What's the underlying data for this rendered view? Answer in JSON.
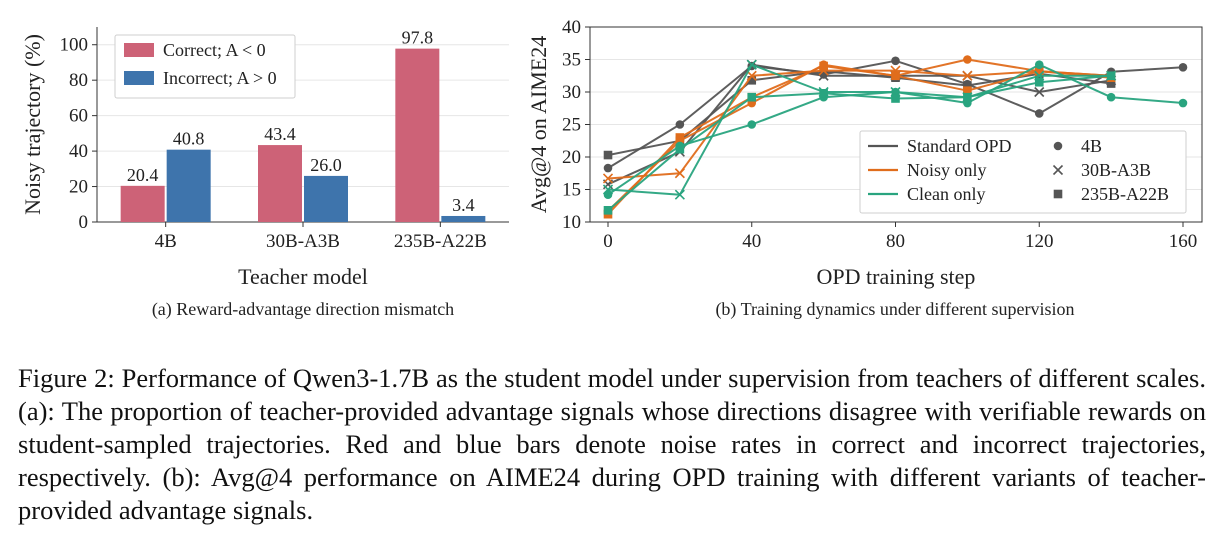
{
  "figure": {
    "caption_label": "Figure 2:",
    "caption_text": "Performance of Qwen3-1.7B as the student model under supervision from teachers of different scales. (a): The proportion of teacher-provided advantage signals whose directions disagree with verifiable rewards on student-sampled trajectories. Red and blue bars denote noise rates in correct and incorrect trajectories, respectively. (b): Avg@4 performance on AIME24 during OPD training with different variants of teacher-provided advantage signals."
  },
  "colors": {
    "correct": "#cd6277",
    "incorrect": "#3e74ac",
    "standard": "#555555",
    "noisy": "#e06d1c",
    "clean": "#29a47f"
  },
  "chart_data": [
    {
      "type": "bar",
      "panel_caption": "(a) Reward-advantage direction mismatch",
      "xlabel": "Teacher model",
      "ylabel": "Noisy trajectory (%)",
      "ylim": [
        0,
        110
      ],
      "yticks": [
        "0",
        "20",
        "40",
        "60",
        "80",
        "100"
      ],
      "categories": [
        "4B",
        "30B-A3B",
        "235B-A22B"
      ],
      "series": [
        {
          "name": "Correct; A < 0",
          "values": [
            20.4,
            43.4,
            97.8
          ],
          "labels": [
            "20.4",
            "43.4",
            "97.8"
          ]
        },
        {
          "name": "Incorrect; A > 0",
          "values": [
            40.8,
            26.0,
            3.4
          ],
          "labels": [
            "40.8",
            "26.0",
            "3.4"
          ]
        }
      ],
      "legend_position": "top-left",
      "grid": "horizontal"
    },
    {
      "type": "line",
      "panel_caption": "(b) Training dynamics under different supervision",
      "xlabel": "OPD training step",
      "ylabel": "Avg@4 on AIME24",
      "xlim": [
        0,
        160
      ],
      "ylim": [
        10,
        40
      ],
      "xticks": [
        "0",
        "40",
        "80",
        "120",
        "160"
      ],
      "yticks": [
        "10",
        "15",
        "20",
        "25",
        "30",
        "35",
        "40"
      ],
      "legend_position": "lower-right",
      "grid": "horizontal",
      "legend": {
        "lines": [
          "Standard OPD",
          "Noisy only",
          "Clean only"
        ],
        "markers": [
          "4B",
          "30B-A3B",
          "235B-A22B"
        ]
      },
      "series": [
        {
          "variant": "Standard OPD",
          "teacher": "4B",
          "marker": "circle",
          "x": [
            0,
            20,
            40,
            60,
            80,
            100,
            120,
            140,
            160
          ],
          "y": [
            18.3,
            25.0,
            34.0,
            32.7,
            34.8,
            31.2,
            26.7,
            33.1,
            33.8
          ]
        },
        {
          "variant": "Standard OPD",
          "teacher": "30B-A3B",
          "marker": "x",
          "x": [
            0,
            20,
            40,
            60,
            80,
            100,
            120,
            140
          ],
          "y": [
            15.8,
            20.8,
            34.2,
            32.5,
            32.5,
            32.5,
            30.0,
            31.8
          ]
        },
        {
          "variant": "Standard OPD",
          "teacher": "235B-A22B",
          "marker": "square",
          "x": [
            0,
            20,
            40,
            60,
            80,
            100,
            120,
            140
          ],
          "y": [
            20.3,
            22.5,
            31.8,
            33.2,
            32.2,
            31.0,
            32.8,
            31.3
          ]
        },
        {
          "variant": "Noisy only",
          "teacher": "4B",
          "marker": "circle",
          "x": [
            0,
            20,
            40,
            60,
            80,
            100,
            120,
            140
          ],
          "y": [
            11.7,
            22.5,
            28.3,
            34.2,
            32.5,
            35.0,
            33.2,
            32.5
          ]
        },
        {
          "variant": "Noisy only",
          "teacher": "30B-A3B",
          "marker": "x",
          "x": [
            0,
            20,
            40,
            60,
            80,
            100,
            120,
            140
          ],
          "y": [
            16.7,
            17.5,
            32.5,
            33.3,
            33.3,
            32.5,
            33.2,
            32.5
          ]
        },
        {
          "variant": "Noisy only",
          "teacher": "235B-A22B",
          "marker": "square",
          "x": [
            0,
            20,
            40,
            60,
            80,
            100,
            120,
            140
          ],
          "y": [
            11.2,
            23.0,
            29.2,
            34.0,
            32.5,
            30.2,
            33.2,
            32.2
          ]
        },
        {
          "variant": "Clean only",
          "teacher": "4B",
          "marker": "circle",
          "x": [
            0,
            20,
            40,
            60,
            80,
            100,
            120,
            140,
            160
          ],
          "y": [
            14.2,
            21.7,
            25.0,
            29.2,
            30.0,
            28.3,
            34.2,
            29.2,
            28.3
          ]
        },
        {
          "variant": "Clean only",
          "teacher": "30B-A3B",
          "marker": "x",
          "x": [
            0,
            20,
            40,
            60,
            80,
            100,
            120,
            140
          ],
          "y": [
            15.0,
            14.2,
            34.2,
            30.0,
            30.0,
            29.2,
            32.5,
            32.5
          ]
        },
        {
          "variant": "Clean only",
          "teacher": "235B-A22B",
          "marker": "square",
          "x": [
            0,
            20,
            40,
            60,
            80,
            100,
            120,
            140
          ],
          "y": [
            11.8,
            21.2,
            29.2,
            29.8,
            29.0,
            29.2,
            31.5,
            32.5
          ]
        }
      ]
    }
  ]
}
